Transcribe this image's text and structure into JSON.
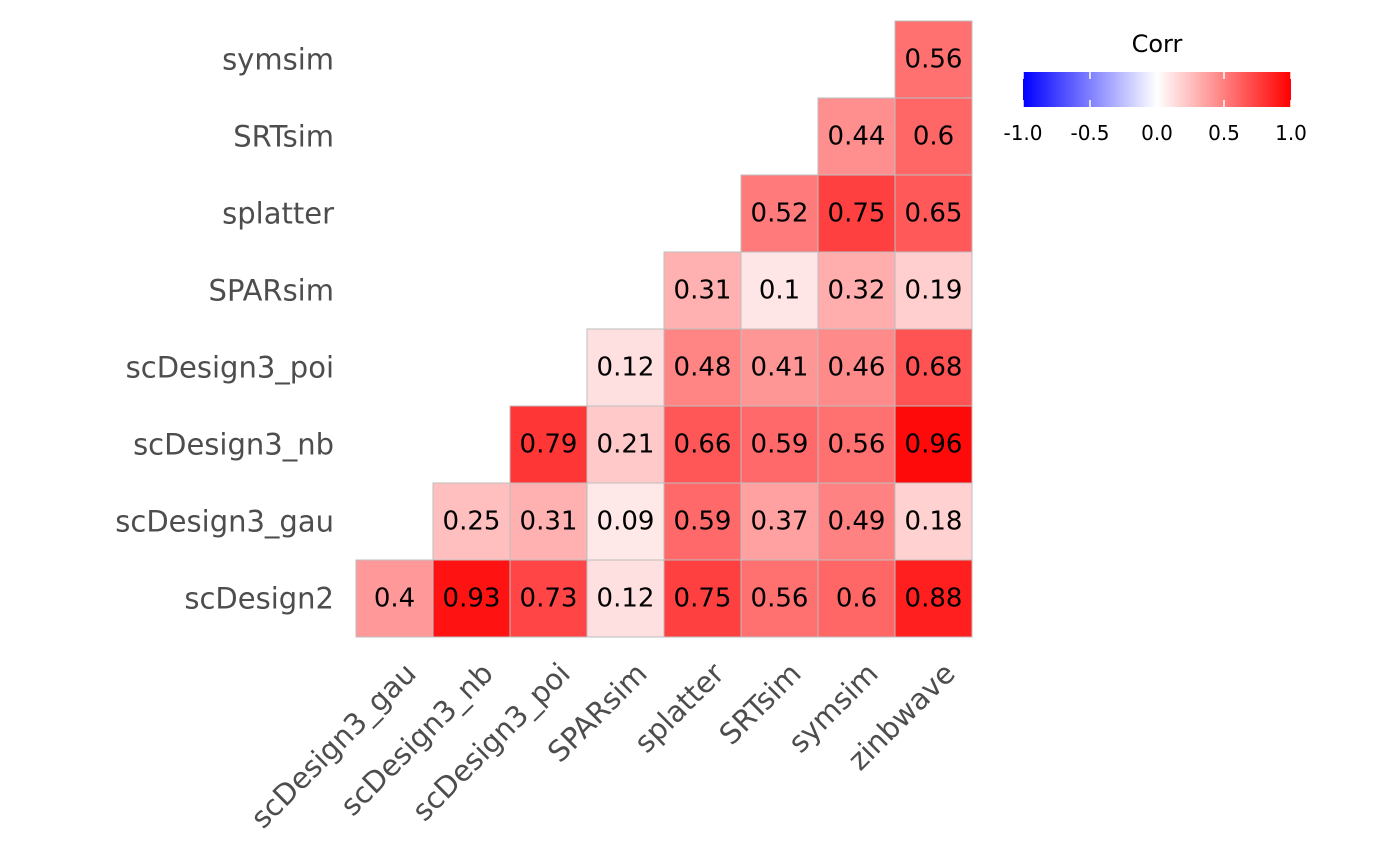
{
  "chart_data": {
    "type": "heatmap",
    "x_categories": [
      "scDesign3_gau",
      "scDesign3_nb",
      "scDesign3_poi",
      "SPARsim",
      "splatter",
      "SRTsim",
      "symsim",
      "zinbwave"
    ],
    "y_categories": [
      "scDesign2",
      "scDesign3_gau",
      "scDesign3_nb",
      "scDesign3_poi",
      "SPARsim",
      "splatter",
      "SRTsim",
      "symsim"
    ],
    "cells": [
      {
        "y": "scDesign2",
        "x": "scDesign3_gau",
        "value": 0.4,
        "label": "0.4"
      },
      {
        "y": "scDesign2",
        "x": "scDesign3_nb",
        "value": 0.93,
        "label": "0.93"
      },
      {
        "y": "scDesign2",
        "x": "scDesign3_poi",
        "value": 0.73,
        "label": "0.73"
      },
      {
        "y": "scDesign2",
        "x": "SPARsim",
        "value": 0.12,
        "label": "0.12"
      },
      {
        "y": "scDesign2",
        "x": "splatter",
        "value": 0.75,
        "label": "0.75"
      },
      {
        "y": "scDesign2",
        "x": "SRTsim",
        "value": 0.56,
        "label": "0.56"
      },
      {
        "y": "scDesign2",
        "x": "symsim",
        "value": 0.6,
        "label": "0.6"
      },
      {
        "y": "scDesign2",
        "x": "zinbwave",
        "value": 0.88,
        "label": "0.88"
      },
      {
        "y": "scDesign3_gau",
        "x": "scDesign3_nb",
        "value": 0.25,
        "label": "0.25"
      },
      {
        "y": "scDesign3_gau",
        "x": "scDesign3_poi",
        "value": 0.31,
        "label": "0.31"
      },
      {
        "y": "scDesign3_gau",
        "x": "SPARsim",
        "value": 0.09,
        "label": "0.09"
      },
      {
        "y": "scDesign3_gau",
        "x": "splatter",
        "value": 0.59,
        "label": "0.59"
      },
      {
        "y": "scDesign3_gau",
        "x": "SRTsim",
        "value": 0.37,
        "label": "0.37"
      },
      {
        "y": "scDesign3_gau",
        "x": "symsim",
        "value": 0.49,
        "label": "0.49"
      },
      {
        "y": "scDesign3_gau",
        "x": "zinbwave",
        "value": 0.18,
        "label": "0.18"
      },
      {
        "y": "scDesign3_nb",
        "x": "scDesign3_poi",
        "value": 0.79,
        "label": "0.79"
      },
      {
        "y": "scDesign3_nb",
        "x": "SPARsim",
        "value": 0.21,
        "label": "0.21"
      },
      {
        "y": "scDesign3_nb",
        "x": "splatter",
        "value": 0.66,
        "label": "0.66"
      },
      {
        "y": "scDesign3_nb",
        "x": "SRTsim",
        "value": 0.59,
        "label": "0.59"
      },
      {
        "y": "scDesign3_nb",
        "x": "symsim",
        "value": 0.56,
        "label": "0.56"
      },
      {
        "y": "scDesign3_nb",
        "x": "zinbwave",
        "value": 0.96,
        "label": "0.96"
      },
      {
        "y": "scDesign3_poi",
        "x": "SPARsim",
        "value": 0.12,
        "label": "0.12"
      },
      {
        "y": "scDesign3_poi",
        "x": "splatter",
        "value": 0.48,
        "label": "0.48"
      },
      {
        "y": "scDesign3_poi",
        "x": "SRTsim",
        "value": 0.41,
        "label": "0.41"
      },
      {
        "y": "scDesign3_poi",
        "x": "symsim",
        "value": 0.46,
        "label": "0.46"
      },
      {
        "y": "scDesign3_poi",
        "x": "zinbwave",
        "value": 0.68,
        "label": "0.68"
      },
      {
        "y": "SPARsim",
        "x": "splatter",
        "value": 0.31,
        "label": "0.31"
      },
      {
        "y": "SPARsim",
        "x": "SRTsim",
        "value": 0.1,
        "label": "0.1"
      },
      {
        "y": "SPARsim",
        "x": "symsim",
        "value": 0.32,
        "label": "0.32"
      },
      {
        "y": "SPARsim",
        "x": "zinbwave",
        "value": 0.19,
        "label": "0.19"
      },
      {
        "y": "splatter",
        "x": "SRTsim",
        "value": 0.52,
        "label": "0.52"
      },
      {
        "y": "splatter",
        "x": "symsim",
        "value": 0.75,
        "label": "0.75"
      },
      {
        "y": "splatter",
        "x": "zinbwave",
        "value": 0.65,
        "label": "0.65"
      },
      {
        "y": "SRTsim",
        "x": "symsim",
        "value": 0.44,
        "label": "0.44"
      },
      {
        "y": "SRTsim",
        "x": "zinbwave",
        "value": 0.6,
        "label": "0.6"
      },
      {
        "y": "symsim",
        "x": "zinbwave",
        "value": 0.56,
        "label": "0.56"
      }
    ],
    "legend": {
      "title": "Corr",
      "placement": "top-right",
      "range": [
        -1,
        1
      ],
      "ticks": [
        -1.0,
        -0.5,
        0.0,
        0.5,
        1.0
      ],
      "tick_labels": [
        "-1.0",
        "-0.5",
        "0.0",
        "0.5",
        "1.0"
      ],
      "colors": {
        "low": "#0000FF",
        "mid": "#FFFFFF",
        "high": "#FF0000"
      }
    },
    "cell_border_color": "#BEBEBE",
    "grid": false
  }
}
